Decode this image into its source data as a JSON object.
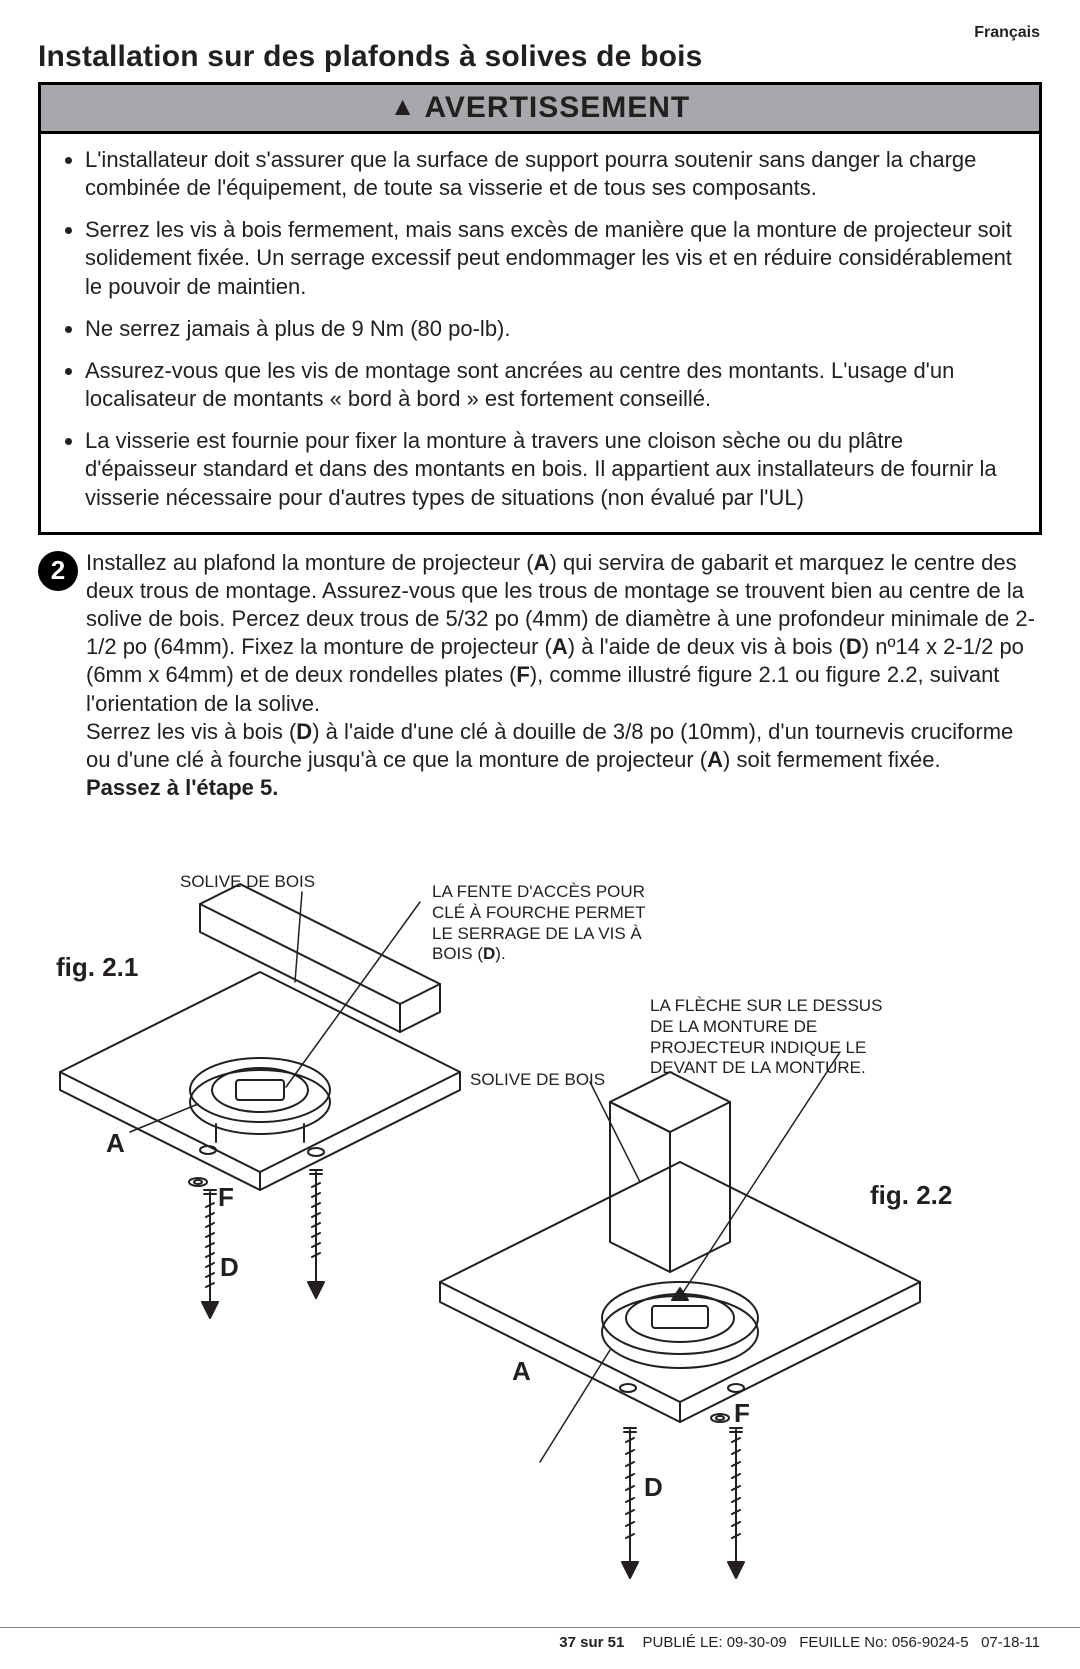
{
  "language_label": "Français",
  "title": "Installation sur des plafonds à solives de bois",
  "warning": {
    "heading": "AVERTISSEMENT",
    "bullets": [
      "L'installateur doit s'assurer que la surface de support pourra soutenir sans danger la charge combinée de l'équipement, de toute sa visserie et de tous ses composants.",
      "Serrez les vis à bois fermement, mais sans excès de manière que la monture de projecteur soit solidement fixée. Un serrage excessif peut endommager les vis et en réduire considérablement le pouvoir de maintien.",
      "Ne serrez jamais à plus de 9 Nm (80 po-lb).",
      "Assurez-vous que les vis de montage sont ancrées au centre des montants. L'usage d'un localisateur de montants « bord à bord » est fortement conseillé.",
      "La visserie est fournie pour fixer la monture à travers une cloison sèche ou du plâtre d'épaisseur standard et dans des montants en bois. Il appartient aux installateurs de fournir la visserie nécessaire pour d'autres types de situations (non évalué par l'UL)"
    ]
  },
  "step": {
    "number": "2",
    "text_html": "Installez au plafond la monture de projecteur (<b>A</b>) qui servira de gabarit et marquez le centre des deux trous de montage. Assurez-vous que les trous de montage se trouvent bien au centre de la solive de bois. Percez deux trous de 5/32 po (4mm) de diamètre à une profondeur minimale de 2-1/2 po (64mm). Fixez la monture de projecteur (<b>A</b>) à l'aide de deux vis à bois (<b>D</b>) nº14 x 2-1/2 po (6mm x 64mm) et de deux rondelles plates (<b>F</b>), comme illustré figure 2.1 ou figure 2.2, suivant l'orientation de la solive.<br>Serrez les vis à bois (<b>D</b>) à l'aide d'une clé à douille de 3/8 po (10mm), d'un tournevis cruciforme ou d'une clé à fourche jusqu'à ce que la monture de projecteur (<b>A</b>) soit fermement fixée.<br><b>Passez à l'étape 5.</b>"
  },
  "figure": {
    "cap1": "fig. 2.1",
    "cap2": "fig. 2.2",
    "label_A": "A",
    "label_F": "F",
    "label_D": "D",
    "note_joist": "SOLIVE DE BOIS",
    "note_slot_html": "LA FENTE D'ACCÈS POUR<br>CLÉ À FOURCHE PERMET<br>LE SERRAGE DE LA VIS À<br>BOIS (<b>D</b>).",
    "note_arrow_html": "LA FLÈCHE SUR LE DESSUS<br>DE LA MONTURE DE<br>PROJECTEUR INDIQUE LE<br>DEVANT DE LA MONTURE."
  },
  "footer": {
    "page": "37 sur 51",
    "published_label": "PUBLIÉ LE:",
    "published_date": "09-30-09",
    "sheet_label": "FEUILLE No:",
    "sheet_no": "056-9024-5",
    "sheet_date": "07-18-11"
  },
  "colors": {
    "text": "#231f20",
    "warn_bg": "#a6a8ab",
    "rule": "#888888",
    "stroke": "#231f20"
  }
}
